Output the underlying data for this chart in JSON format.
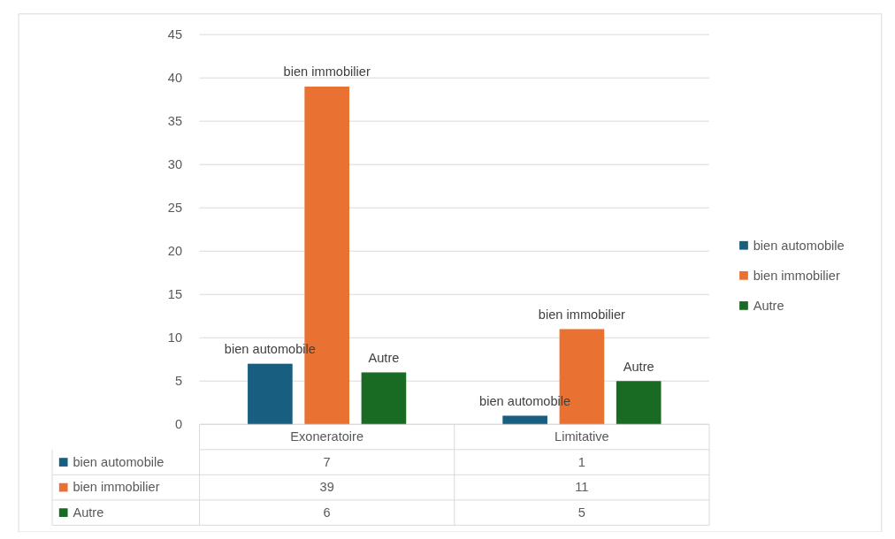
{
  "chart_data": {
    "type": "bar",
    "categories": [
      "Exoneratoire",
      "Limitative"
    ],
    "series": [
      {
        "name": "bien automobile",
        "color": "#175e81",
        "values": [
          7,
          1
        ]
      },
      {
        "name": "bien immobilier",
        "color": "#e97132",
        "values": [
          39,
          11
        ]
      },
      {
        "name": "Autre",
        "color": "#196b24",
        "values": [
          6,
          5
        ]
      }
    ],
    "ylim": [
      0,
      45
    ],
    "yticks": [
      0,
      5,
      10,
      15,
      20,
      25,
      30,
      35,
      40,
      45
    ],
    "grid": "y",
    "legend": "right",
    "data_labels": true
  }
}
